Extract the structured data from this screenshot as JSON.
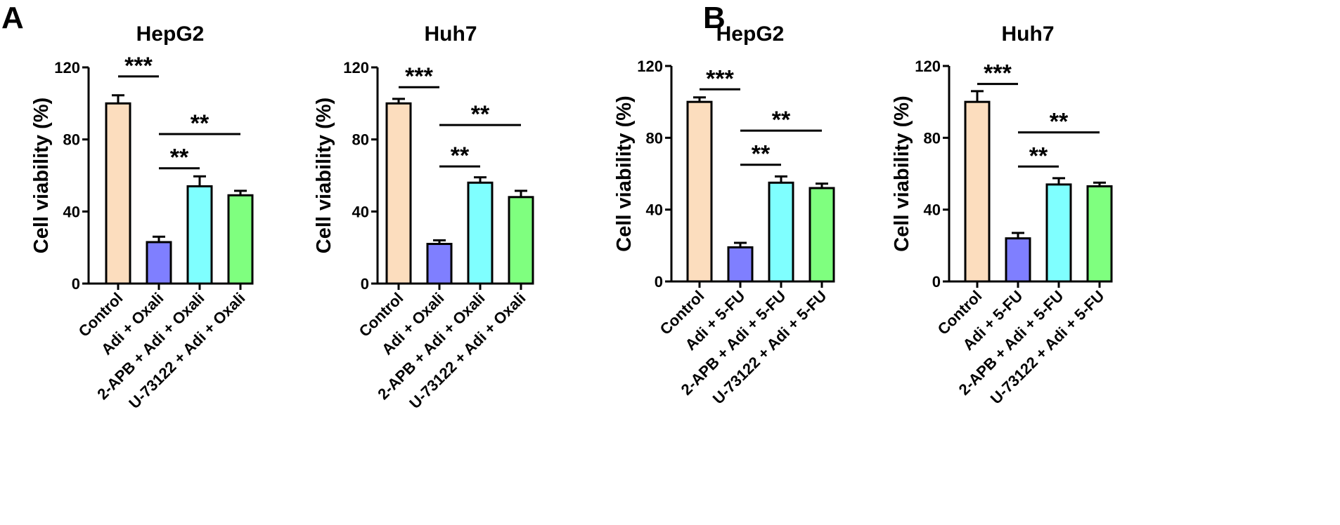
{
  "panels": [
    {
      "letter": "A"
    },
    {
      "letter": "B"
    }
  ],
  "chart_data": [
    {
      "type": "bar",
      "panel": "A",
      "title": "HepG2",
      "ylabel": "Cell viability (%)",
      "ylim": [
        0,
        120
      ],
      "yticks": [
        "0",
        "40",
        "80",
        "120"
      ],
      "categories": [
        "Control",
        "Adi + Oxali",
        "2-APB + Adi + Oxali",
        "U-73122 + Adi + Oxali"
      ],
      "values": [
        100,
        23,
        54,
        49
      ],
      "errors": [
        4.5,
        3,
        5.5,
        2.5
      ],
      "colors": [
        "#FCDDBE",
        "#7F7FFF",
        "#7FFFFF",
        "#7FFF7F"
      ],
      "significance": [
        {
          "from": 0,
          "to": 1,
          "level": 115,
          "label": "***"
        },
        {
          "from": 1,
          "to": 3,
          "level": 83,
          "label": "**"
        },
        {
          "from": 1,
          "to": 2,
          "level": 64,
          "label": "**"
        }
      ]
    },
    {
      "type": "bar",
      "panel": "A",
      "title": "Huh7",
      "ylabel": "Cell viability (%)",
      "ylim": [
        0,
        120
      ],
      "yticks": [
        "0",
        "40",
        "80",
        "120"
      ],
      "categories": [
        "Control",
        "Adi + Oxali",
        "2-APB + Adi + Oxali",
        "U-73122 + Adi + Oxali"
      ],
      "values": [
        100,
        22,
        56,
        48
      ],
      "errors": [
        2.5,
        2,
        3,
        3.5
      ],
      "colors": [
        "#FCDDBE",
        "#7F7FFF",
        "#7FFFFF",
        "#7FFF7F"
      ],
      "significance": [
        {
          "from": 0,
          "to": 1,
          "level": 109,
          "label": "***"
        },
        {
          "from": 1,
          "to": 3,
          "level": 88,
          "label": "**"
        },
        {
          "from": 1,
          "to": 2,
          "level": 65,
          "label": "**"
        }
      ]
    },
    {
      "type": "bar",
      "panel": "B",
      "title": "HepG2",
      "ylabel": "Cell viability (%)",
      "ylim": [
        0,
        120
      ],
      "yticks": [
        "0",
        "40",
        "80",
        "120"
      ],
      "categories": [
        "Control",
        "Adi + 5-FU",
        "2-APB + Adi + 5-FU",
        "U-73122 + Adi + 5-FU"
      ],
      "values": [
        100,
        19,
        55,
        52
      ],
      "errors": [
        2.5,
        2.5,
        3.5,
        2.5
      ],
      "colors": [
        "#FCDDBE",
        "#7F7FFF",
        "#7FFFFF",
        "#7FFF7F"
      ],
      "significance": [
        {
          "from": 0,
          "to": 1,
          "level": 107,
          "label": "***"
        },
        {
          "from": 1,
          "to": 3,
          "level": 84,
          "label": "**"
        },
        {
          "from": 1,
          "to": 2,
          "level": 65,
          "label": "**"
        }
      ]
    },
    {
      "type": "bar",
      "panel": "B",
      "title": "Huh7",
      "ylabel": "Cell viability (%)",
      "ylim": [
        0,
        120
      ],
      "yticks": [
        "0",
        "40",
        "80",
        "120"
      ],
      "categories": [
        "Control",
        "Adi + 5-FU",
        "2-APB + Adi + 5-FU",
        "U-73122 + Adi + 5-FU"
      ],
      "values": [
        100,
        24,
        54,
        53
      ],
      "errors": [
        6,
        3,
        3.5,
        2
      ],
      "colors": [
        "#FCDDBE",
        "#7F7FFF",
        "#7FFFFF",
        "#7FFF7F"
      ],
      "significance": [
        {
          "from": 0,
          "to": 1,
          "level": 110,
          "label": "***"
        },
        {
          "from": 1,
          "to": 3,
          "level": 83,
          "label": "**"
        },
        {
          "from": 1,
          "to": 2,
          "level": 64,
          "label": "**"
        }
      ]
    }
  ]
}
